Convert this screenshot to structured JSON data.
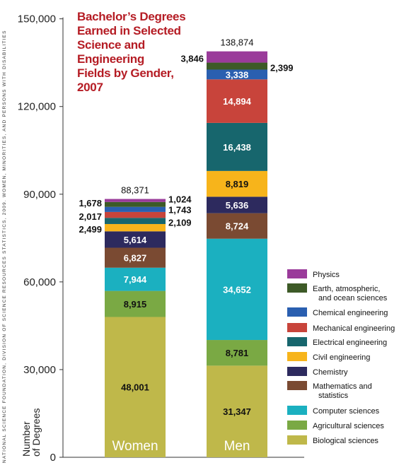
{
  "title_lines": [
    "Bachelor’s Degrees",
    "Earned in Selected",
    "Science and",
    "Engineering",
    "Fields by Gender,",
    "2007"
  ],
  "source_text": "NATIONAL SCIENCE FOUNDATION, DIVISION OF SCIENCE RESOURCES STATISTICS, 2009. WOMEN, MINORITIES, AND PERSONS WITH DISABILITIES",
  "y_axis_label_lines": [
    "Number",
    "of Degrees"
  ],
  "chart_data": {
    "type": "bar",
    "stacked": true,
    "title": "Bachelor’s Degrees Earned in Selected Science and Engineering Fields by Gender, 2007",
    "ylabel": "Number of Degrees",
    "ylim": [
      0,
      150000
    ],
    "yticks": [
      0,
      30000,
      60000,
      90000,
      120000,
      150000
    ],
    "ytick_labels": [
      "0",
      "30,000",
      "60,000",
      "90,000",
      "120,000",
      "150,000"
    ],
    "categories": [
      "Women",
      "Men"
    ],
    "totals": [
      88371,
      138874
    ],
    "total_labels": [
      "88,371",
      "138,874"
    ],
    "series": [
      {
        "name": "Biological sciences",
        "color": "#bfb84a",
        "values": [
          48001,
          31347
        ],
        "labels": [
          "48,001",
          "31,347"
        ]
      },
      {
        "name": "Agricultural sciences",
        "color": "#7aa944",
        "values": [
          8915,
          8781
        ],
        "labels": [
          "8,915",
          "8,781"
        ]
      },
      {
        "name": "Computer sciences",
        "color": "#1bb0c0",
        "values": [
          7944,
          34652
        ],
        "labels": [
          "7,944",
          "34,652"
        ]
      },
      {
        "name": "Mathematics and statistics",
        "color": "#7a4a32",
        "values": [
          6827,
          8724
        ],
        "labels": [
          "6,827",
          "8,724"
        ]
      },
      {
        "name": "Chemistry",
        "color": "#2d2a5e",
        "values": [
          5614,
          5636
        ],
        "labels": [
          "5,614",
          "5,636"
        ]
      },
      {
        "name": "Civil engineering",
        "color": "#f7b41b",
        "values": [
          2499,
          8819
        ],
        "labels": [
          "2,499",
          "8,819"
        ]
      },
      {
        "name": "Electrical engineering",
        "color": "#17666d",
        "values": [
          2109,
          16438
        ],
        "labels": [
          "2,109",
          "16,438"
        ]
      },
      {
        "name": "Mechanical engineering",
        "color": "#c8443b",
        "values": [
          2017,
          14894
        ],
        "labels": [
          "2,017",
          "14,894"
        ]
      },
      {
        "name": "Chemical engineering",
        "color": "#2a5fb0",
        "values": [
          1743,
          3338
        ],
        "labels": [
          "1,743",
          "3,338"
        ]
      },
      {
        "name": "Earth, atmospheric, and ocean sciences",
        "color": "#3d5a27",
        "values": [
          1678,
          2399
        ],
        "labels": [
          "1,678",
          "2,399"
        ]
      },
      {
        "name": "Physics",
        "color": "#9a3b9a",
        "values": [
          1024,
          3846
        ],
        "labels": [
          "1,024",
          "3,846"
        ]
      }
    ],
    "legend": {
      "placement": "right",
      "order": [
        "Physics",
        "Earth, atmospheric, and ocean sciences",
        "Chemical engineering",
        "Mechanical engineering",
        "Electrical engineering",
        "Civil engineering",
        "Chemistry",
        "Mathematics and statistics",
        "Computer sciences",
        "Agricultural sciences",
        "Biological sciences"
      ],
      "lines": [
        [
          "Physics"
        ],
        [
          "Earth, atmospheric,",
          "and ocean sciences"
        ],
        [
          "Chemical engineering"
        ],
        [
          "Mechanical engineering"
        ],
        [
          "Electrical engineering"
        ],
        [
          "Civil engineering"
        ],
        [
          "Chemistry"
        ],
        [
          "Mathematics and",
          "statistics"
        ],
        [
          "Computer sciences"
        ],
        [
          "Agricultural sciences"
        ],
        [
          "Biological sciences"
        ]
      ]
    },
    "grid": false
  }
}
